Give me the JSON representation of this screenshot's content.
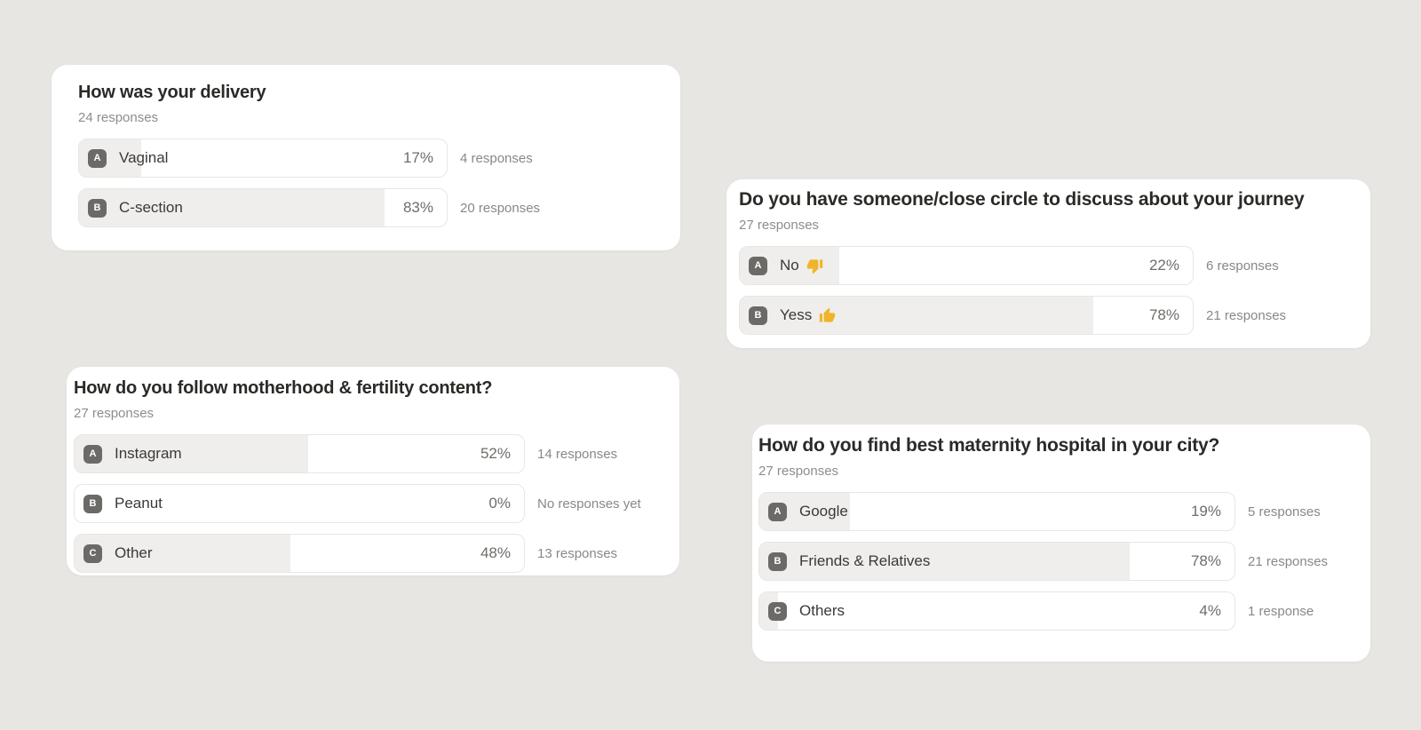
{
  "palette": {
    "page_bg": "#e7e6e3",
    "card_bg": "#ffffff",
    "badge_bg": "#6b6a66",
    "bar_fill": "#efeeec",
    "title_color": "#2b2a27",
    "muted_color": "#8f8d89",
    "thumb_yellow": "#f0b429"
  },
  "cards": [
    {
      "title": "How was your delivery",
      "responses_label": "24 responses",
      "options": [
        {
          "letter": "A",
          "label": "Vaginal",
          "percent_label": "17%",
          "percent": 17,
          "count_label": "4 responses"
        },
        {
          "letter": "B",
          "label": "C-section",
          "percent_label": "83%",
          "percent": 83,
          "count_label": "20 responses"
        }
      ]
    },
    {
      "title": "Do you have someone/close circle to discuss about your journey",
      "responses_label": "27 responses",
      "options": [
        {
          "letter": "A",
          "label": "No",
          "emoji": "👎",
          "percent_label": "22%",
          "percent": 22,
          "count_label": "6 responses"
        },
        {
          "letter": "B",
          "label": "Yess",
          "emoji": "👍",
          "percent_label": "78%",
          "percent": 78,
          "count_label": "21 responses"
        }
      ]
    },
    {
      "title": "How do you follow motherhood & fertility content?",
      "responses_label": "27 responses",
      "options": [
        {
          "letter": "A",
          "label": "Instagram",
          "percent_label": "52%",
          "percent": 52,
          "count_label": "14 responses"
        },
        {
          "letter": "B",
          "label": "Peanut",
          "percent_label": "0%",
          "percent": 0,
          "count_label": "No responses yet"
        },
        {
          "letter": "C",
          "label": "Other",
          "percent_label": "48%",
          "percent": 48,
          "count_label": "13 responses"
        }
      ]
    },
    {
      "title": "How do you find best maternity hospital in your city?",
      "responses_label": "27 responses",
      "options": [
        {
          "letter": "A",
          "label": "Google",
          "percent_label": "19%",
          "percent": 19,
          "count_label": "5 responses"
        },
        {
          "letter": "B",
          "label": "Friends & Relatives",
          "percent_label": "78%",
          "percent": 78,
          "count_label": "21 responses"
        },
        {
          "letter": "C",
          "label": "Others",
          "percent_label": "4%",
          "percent": 4,
          "count_label": "1 response"
        }
      ]
    }
  ]
}
